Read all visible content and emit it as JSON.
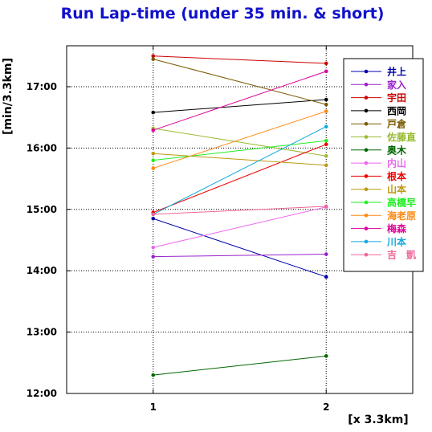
{
  "chart_data": {
    "type": "line",
    "title": "Run Lap-time (under 35 min. & short)",
    "xlabel": "[x 3.3km]",
    "ylabel": "[min/3.3km]",
    "x": [
      1,
      2
    ],
    "xlim": [
      0.5,
      2.5
    ],
    "ylim": [
      12.0,
      17.667
    ],
    "x_ticks": [
      "1",
      "2"
    ],
    "y_ticks": [
      {
        "value": 12.0,
        "label": "12:00"
      },
      {
        "value": 13.0,
        "label": "13:00"
      },
      {
        "value": 14.0,
        "label": "14:00"
      },
      {
        "value": 15.0,
        "label": "15:00"
      },
      {
        "value": 16.0,
        "label": "16:00"
      },
      {
        "value": 17.0,
        "label": "17:00"
      }
    ],
    "grid": true,
    "legend_position": "top-right",
    "series": [
      {
        "name": "井上",
        "color": "#0000aa",
        "values": [
          14.85,
          13.9
        ]
      },
      {
        "name": "家入",
        "color": "#9922cc",
        "values": [
          14.23,
          14.27
        ]
      },
      {
        "name": "宇田",
        "color": "#cc0000",
        "values": [
          17.5,
          17.38
        ]
      },
      {
        "name": "西岡",
        "color": "#000000",
        "values": [
          16.58,
          16.79
        ]
      },
      {
        "name": "戸倉",
        "color": "#7a5a00",
        "values": [
          17.45,
          16.71
        ]
      },
      {
        "name": "佐藤直",
        "color": "#99bb33",
        "values": [
          16.32,
          15.87
        ]
      },
      {
        "name": "奥木",
        "color": "#006600",
        "values": [
          12.3,
          12.61
        ]
      },
      {
        "name": "内山",
        "color": "#ee66ee",
        "values": [
          14.38,
          15.04
        ]
      },
      {
        "name": "根本",
        "color": "#ee0000",
        "values": [
          14.95,
          16.06
        ]
      },
      {
        "name": "山本",
        "color": "#bb9911",
        "values": [
          15.91,
          15.72
        ]
      },
      {
        "name": "高橋早",
        "color": "#22ee22",
        "values": [
          15.8,
          16.12
        ]
      },
      {
        "name": "海老原",
        "color": "#ff8811",
        "values": [
          15.67,
          16.6
        ]
      },
      {
        "name": "梅森",
        "color": "#dd0099",
        "values": [
          16.29,
          17.25
        ]
      },
      {
        "name": "川本",
        "color": "#11aadd",
        "values": [
          14.92,
          16.35
        ]
      },
      {
        "name": "吉　凱",
        "color": "#ee6699",
        "values": [
          14.92,
          15.05
        ]
      }
    ]
  }
}
